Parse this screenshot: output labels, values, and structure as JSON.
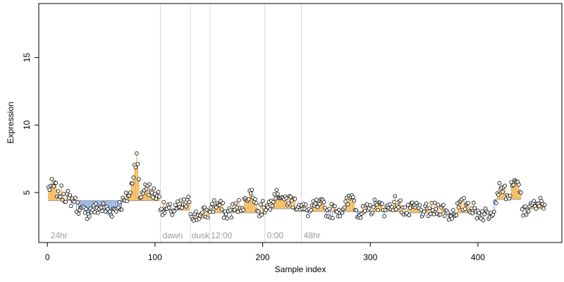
{
  "chart_data": {
    "type": "scatter",
    "title": "",
    "xlabel": "Sample index",
    "ylabel": "Expression",
    "xlim": [
      -8,
      478
    ],
    "ylim": [
      1.3,
      19.0
    ],
    "x_ticks": [
      0,
      100,
      200,
      300,
      400
    ],
    "y_ticks": [
      5,
      10,
      15
    ],
    "grid": false,
    "legend": "none",
    "colors": {
      "above_baseline": "#f0a020",
      "below_baseline": "#6a98dc",
      "point_fill": "#ffffff",
      "point_edge": "#000000",
      "baseline": "#9a9a9a",
      "phase_line": "#d9d9d9",
      "phase_text": "#9a9a9a"
    },
    "phase_boundaries": [
      105,
      133,
      151,
      202,
      236
    ],
    "phase_labels": [
      {
        "text": "24hr",
        "x": 3
      },
      {
        "text": "dawn",
        "x": 107
      },
      {
        "text": "dusk",
        "x": 134
      },
      {
        "text": "12:00",
        "x": 152
      },
      {
        "text": "0:00",
        "x": 204
      },
      {
        "text": "48hr",
        "x": 238
      }
    ],
    "segments": [
      {
        "x_start": 1,
        "x_end": 104,
        "baseline": 4.4
      },
      {
        "x_start": 105,
        "x_end": 132,
        "baseline": 3.7
      },
      {
        "x_start": 133,
        "x_end": 150,
        "baseline": 3.1
      },
      {
        "x_start": 151,
        "x_end": 201,
        "baseline": 3.5
      },
      {
        "x_start": 202,
        "x_end": 235,
        "baseline": 3.8
      },
      {
        "x_start": 236,
        "x_end": 330,
        "baseline": 3.6
      },
      {
        "x_start": 331,
        "x_end": 414,
        "baseline": 3.5
      },
      {
        "x_start": 415,
        "x_end": 440,
        "baseline": 4.5
      },
      {
        "x_start": 441,
        "x_end": 462,
        "baseline": 3.8
      }
    ],
    "keypoints": [
      {
        "x": 1,
        "y": 5.4
      },
      {
        "x": 5,
        "y": 5.5
      },
      {
        "x": 10,
        "y": 5.1
      },
      {
        "x": 15,
        "y": 4.9
      },
      {
        "x": 20,
        "y": 4.6
      },
      {
        "x": 25,
        "y": 4.3
      },
      {
        "x": 30,
        "y": 3.7
      },
      {
        "x": 35,
        "y": 3.5
      },
      {
        "x": 42,
        "y": 3.7
      },
      {
        "x": 50,
        "y": 3.9
      },
      {
        "x": 58,
        "y": 3.6
      },
      {
        "x": 66,
        "y": 3.9
      },
      {
        "x": 72,
        "y": 4.4
      },
      {
        "x": 77,
        "y": 5.0
      },
      {
        "x": 83,
        "y": 7.9
      },
      {
        "x": 86,
        "y": 4.6
      },
      {
        "x": 91,
        "y": 5.6
      },
      {
        "x": 96,
        "y": 5.1
      },
      {
        "x": 100,
        "y": 4.9
      },
      {
        "x": 104,
        "y": 4.7
      },
      {
        "x": 106,
        "y": 3.8
      },
      {
        "x": 115,
        "y": 3.6
      },
      {
        "x": 122,
        "y": 3.9
      },
      {
        "x": 128,
        "y": 4.1
      },
      {
        "x": 132,
        "y": 4.3
      },
      {
        "x": 134,
        "y": 3.2
      },
      {
        "x": 142,
        "y": 3.3
      },
      {
        "x": 150,
        "y": 3.6
      },
      {
        "x": 152,
        "y": 3.9
      },
      {
        "x": 158,
        "y": 4.2
      },
      {
        "x": 166,
        "y": 3.4
      },
      {
        "x": 176,
        "y": 3.9
      },
      {
        "x": 186,
        "y": 4.4
      },
      {
        "x": 190,
        "y": 5.2
      },
      {
        "x": 196,
        "y": 3.6
      },
      {
        "x": 201,
        "y": 3.9
      },
      {
        "x": 203,
        "y": 3.7
      },
      {
        "x": 208,
        "y": 4.4
      },
      {
        "x": 213,
        "y": 5.2
      },
      {
        "x": 220,
        "y": 4.5
      },
      {
        "x": 227,
        "y": 4.4
      },
      {
        "x": 234,
        "y": 4.1
      },
      {
        "x": 237,
        "y": 3.8
      },
      {
        "x": 244,
        "y": 3.6
      },
      {
        "x": 252,
        "y": 4.2
      },
      {
        "x": 260,
        "y": 3.7
      },
      {
        "x": 268,
        "y": 3.6
      },
      {
        "x": 276,
        "y": 3.9
      },
      {
        "x": 283,
        "y": 4.8
      },
      {
        "x": 290,
        "y": 3.3
      },
      {
        "x": 298,
        "y": 3.7
      },
      {
        "x": 306,
        "y": 4.1
      },
      {
        "x": 314,
        "y": 3.7
      },
      {
        "x": 322,
        "y": 4.3
      },
      {
        "x": 330,
        "y": 3.9
      },
      {
        "x": 334,
        "y": 3.5
      },
      {
        "x": 342,
        "y": 3.9
      },
      {
        "x": 350,
        "y": 3.6
      },
      {
        "x": 358,
        "y": 3.7
      },
      {
        "x": 366,
        "y": 3.9
      },
      {
        "x": 374,
        "y": 3.3
      },
      {
        "x": 382,
        "y": 3.9
      },
      {
        "x": 390,
        "y": 4.2
      },
      {
        "x": 398,
        "y": 3.6
      },
      {
        "x": 406,
        "y": 3.4
      },
      {
        "x": 412,
        "y": 3.5
      },
      {
        "x": 416,
        "y": 4.3
      },
      {
        "x": 420,
        "y": 5.7
      },
      {
        "x": 424,
        "y": 5.4
      },
      {
        "x": 428,
        "y": 4.7
      },
      {
        "x": 432,
        "y": 5.5
      },
      {
        "x": 436,
        "y": 5.8
      },
      {
        "x": 440,
        "y": 5.0
      },
      {
        "x": 442,
        "y": 3.3
      },
      {
        "x": 446,
        "y": 3.7
      },
      {
        "x": 450,
        "y": 4.1
      },
      {
        "x": 454,
        "y": 3.8
      },
      {
        "x": 458,
        "y": 4.6
      },
      {
        "x": 462,
        "y": 4.1
      }
    ],
    "sampling": {
      "n": 462,
      "spread": 0.55,
      "seed": 7
    }
  }
}
